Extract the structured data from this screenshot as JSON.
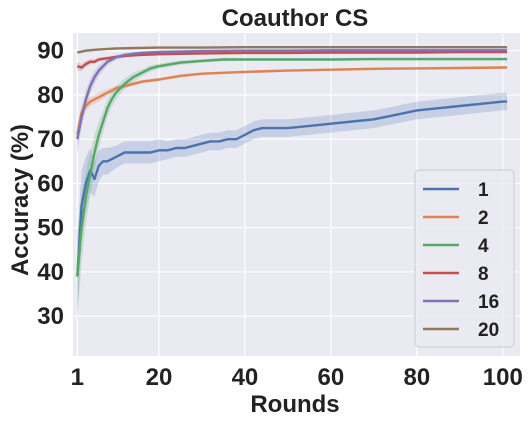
{
  "chart_data": {
    "type": "line",
    "title": "Coauthor CS",
    "xlabel": "Rounds",
    "ylabel": "Accuracy (%)",
    "xlim": [
      0,
      104
    ],
    "ylim": [
      21,
      94
    ],
    "xticks": [
      1,
      20,
      40,
      60,
      80,
      100
    ],
    "yticks": [
      30,
      40,
      50,
      60,
      70,
      80,
      90
    ],
    "grid": true,
    "legend_position": "lower-right",
    "background": "#eaeaf2",
    "series": [
      {
        "name": "1",
        "color": "#4c72b0",
        "x": [
          1,
          2,
          3,
          4,
          5,
          6,
          7,
          8,
          10,
          12,
          14,
          16,
          18,
          20,
          22,
          24,
          26,
          28,
          30,
          32,
          34,
          36,
          38,
          40,
          42,
          44,
          46,
          50,
          55,
          60,
          65,
          70,
          75,
          80,
          85,
          90,
          95,
          100,
          101
        ],
        "y": [
          39,
          55,
          60,
          63,
          61,
          64,
          65,
          65,
          66,
          67,
          67,
          67,
          67,
          67.5,
          67.5,
          68,
          68,
          68.5,
          69,
          69.5,
          69.5,
          70,
          70,
          71,
          72,
          72.5,
          72.5,
          72.5,
          73,
          73.5,
          74,
          74.5,
          75.5,
          76.5,
          77,
          77.5,
          78,
          78.5,
          78.5
        ],
        "band": [
          9,
          8,
          6,
          5,
          4,
          3.5,
          3,
          3,
          2.5,
          2.5,
          2.5,
          2.5,
          2.5,
          2.5,
          2,
          2,
          2,
          2,
          2,
          2,
          2,
          2,
          2,
          2,
          2,
          2,
          2,
          2,
          2,
          2,
          2,
          2,
          2,
          2,
          2,
          2,
          2,
          2,
          2
        ]
      },
      {
        "name": "2",
        "color": "#dd8452",
        "x": [
          1,
          2,
          3,
          4,
          6,
          8,
          10,
          12,
          14,
          16,
          20,
          25,
          30,
          35,
          40,
          50,
          60,
          70,
          80,
          90,
          100,
          101
        ],
        "y": [
          71,
          76,
          77.5,
          78.5,
          79.5,
          80.5,
          81.5,
          82,
          82.5,
          83,
          83.5,
          84.3,
          84.8,
          85,
          85.2,
          85.5,
          85.7,
          85.9,
          86,
          86.1,
          86.2,
          86.2
        ],
        "band": [
          2,
          1.5,
          1.2,
          1,
          1,
          0.8,
          0.6,
          0.5,
          0.5,
          0.4,
          0.4,
          0.4,
          0.3,
          0.3,
          0.3,
          0.3,
          0.3,
          0.3,
          0.3,
          0.3,
          0.3,
          0.3
        ]
      },
      {
        "name": "4",
        "color": "#55a868",
        "x": [
          1,
          2,
          3,
          4,
          5,
          6,
          7,
          8,
          9,
          10,
          12,
          14,
          16,
          18,
          20,
          25,
          30,
          35,
          40,
          50,
          60,
          70,
          80,
          90,
          100,
          101
        ],
        "y": [
          39,
          50,
          57,
          62,
          67,
          71,
          74,
          77,
          79,
          80.5,
          82.5,
          84,
          85,
          86,
          86.5,
          87.3,
          87.7,
          88,
          88,
          88,
          88,
          88.1,
          88.1,
          88.1,
          88.1,
          88.1
        ],
        "band": [
          10,
          8,
          6,
          5,
          4,
          3,
          2.5,
          2,
          1.8,
          1.5,
          1.2,
          1,
          0.8,
          0.7,
          0.6,
          0.5,
          0.4,
          0.4,
          0.3,
          0.3,
          0.3,
          0.3,
          0.3,
          0.3,
          0.3,
          0.3
        ]
      },
      {
        "name": "8",
        "color": "#c44e52",
        "x": [
          1,
          2,
          3,
          4,
          5,
          6,
          8,
          10,
          12,
          15,
          20,
          25,
          30,
          40,
          50,
          60,
          70,
          80,
          90,
          100,
          101
        ],
        "y": [
          86.5,
          86.2,
          87,
          87.5,
          87.5,
          88,
          88.3,
          88.6,
          88.8,
          89,
          89.2,
          89.3,
          89.4,
          89.5,
          89.5,
          89.6,
          89.6,
          89.6,
          89.7,
          89.7,
          89.7
        ],
        "band": [
          1,
          0.8,
          0.7,
          0.6,
          0.5,
          0.5,
          0.4,
          0.3,
          0.3,
          0.3,
          0.3,
          0.3,
          0.3,
          0.3,
          0.3,
          0.3,
          0.3,
          0.3,
          0.3,
          0.3,
          0.3
        ]
      },
      {
        "name": "16",
        "color": "#8172b3",
        "x": [
          1,
          2,
          3,
          4,
          5,
          6,
          7,
          8,
          10,
          12,
          14,
          16,
          20,
          25,
          30,
          40,
          50,
          60,
          70,
          80,
          90,
          100,
          101
        ],
        "y": [
          70,
          75,
          79,
          82,
          84,
          85.5,
          86.5,
          87.5,
          88.5,
          89,
          89.3,
          89.5,
          89.7,
          89.8,
          89.9,
          90,
          90,
          90.1,
          90.1,
          90.1,
          90.1,
          90.1,
          90.1
        ],
        "band": [
          3,
          2.5,
          2,
          1.8,
          1.5,
          1.2,
          1,
          0.8,
          0.6,
          0.5,
          0.4,
          0.4,
          0.3,
          0.3,
          0.3,
          0.3,
          0.3,
          0.3,
          0.3,
          0.3,
          0.3,
          0.3,
          0.3
        ]
      },
      {
        "name": "20",
        "color": "#937860",
        "x": [
          1,
          3,
          5,
          8,
          10,
          15,
          20,
          30,
          40,
          50,
          60,
          70,
          80,
          90,
          100,
          101
        ],
        "y": [
          89.6,
          90,
          90.2,
          90.4,
          90.5,
          90.6,
          90.7,
          90.7,
          90.8,
          90.8,
          90.8,
          90.8,
          90.8,
          90.8,
          90.8,
          90.8
        ],
        "band": [
          0.4,
          0.3,
          0.3,
          0.2,
          0.2,
          0.2,
          0.2,
          0.2,
          0.2,
          0.2,
          0.2,
          0.2,
          0.2,
          0.2,
          0.2,
          0.2
        ]
      }
    ]
  }
}
